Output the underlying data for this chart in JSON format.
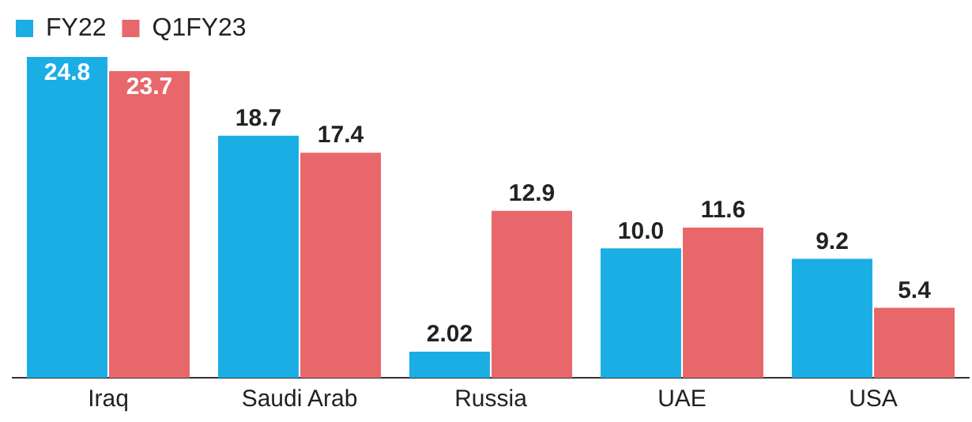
{
  "chart_data": {
    "type": "bar",
    "categories": [
      "Iraq",
      "Saudi Arab",
      "Russia",
      "UAE",
      "USA"
    ],
    "series": [
      {
        "name": "FY22",
        "color": "#1aaee5",
        "values": [
          24.8,
          18.7,
          2.02,
          10.0,
          9.2
        ],
        "value_labels": [
          "24.8",
          "18.7",
          "2.02",
          "10.0",
          "9.2"
        ]
      },
      {
        "name": "Q1FY23",
        "color": "#e8676a",
        "values": [
          23.7,
          17.4,
          12.9,
          11.6,
          5.4
        ],
        "value_labels": [
          "23.7",
          "17.4",
          "12.9",
          "11.6",
          "5.4"
        ]
      }
    ],
    "relative": false,
    "legend": "top left",
    "grid": false
  }
}
